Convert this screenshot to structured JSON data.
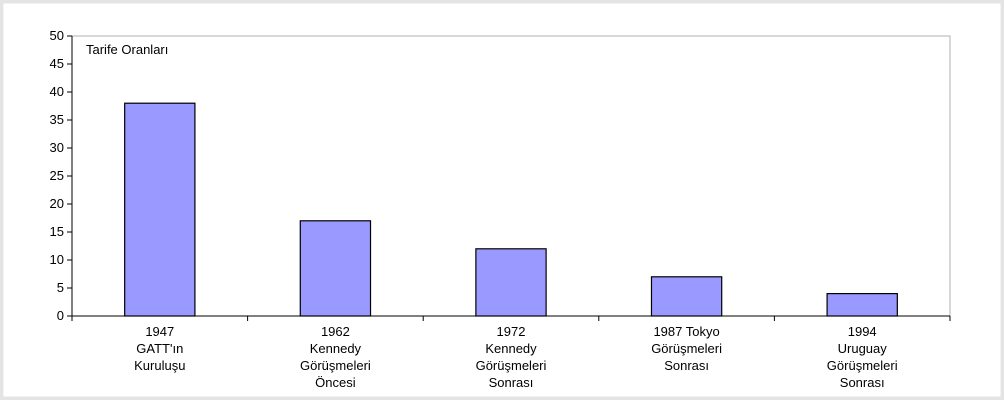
{
  "chart_data": {
    "type": "bar",
    "title": "Tarife Oranları",
    "categories": [
      "1947\nGATT'ın\nKuruluşu",
      "1962\nKennedy\nGörüşmeleri\nÖncesi",
      "1972\nKennedy\nGörüşmeleri\nSonrası",
      "1987 Tokyo\nGörüşmeleri\nSonrası",
      "1994\nUruguay\nGörüşmeleri\nSonrası"
    ],
    "values": [
      38,
      17,
      12,
      7,
      4
    ],
    "color": "#9999ff",
    "ylim": [
      0,
      50
    ],
    "yticks": [
      0,
      5,
      10,
      15,
      20,
      25,
      30,
      35,
      40,
      45,
      50
    ],
    "grid": false
  }
}
